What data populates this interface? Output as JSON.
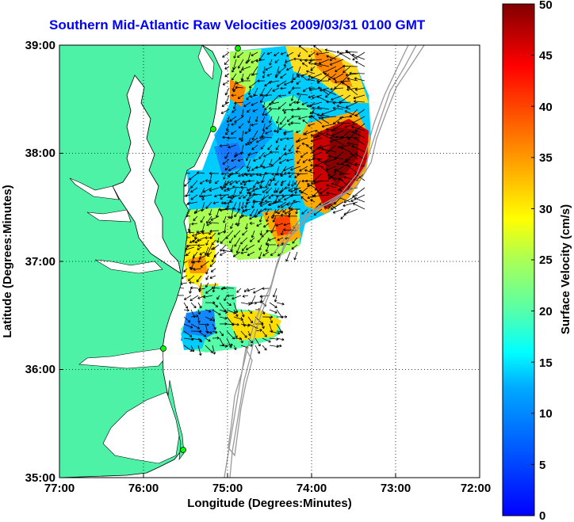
{
  "title": "Southern Mid-Atlantic Raw Velocities 2009/03/31 0100 GMT",
  "map": {
    "xlabel": "Longitude (Degrees:Minutes)",
    "ylabel": "Latitude (Degrees:Minutes)",
    "x_ticks": [
      "77:00",
      "76:00",
      "75:00",
      "74:00",
      "73:00",
      "72:00"
    ],
    "y_ticks": [
      "39:00",
      "38:00",
      "37:00",
      "36:00",
      "35:00"
    ],
    "lon_range": [
      -77,
      -72
    ],
    "lat_range": [
      35,
      39
    ],
    "land_color": "#4df2a6",
    "coast_color": "#000000",
    "bathymetry_color": "#999999",
    "grid": "dotted",
    "stations": [
      {
        "lon": -74.87,
        "lat": 38.97
      },
      {
        "lon": -75.1,
        "lat": 38.22
      },
      {
        "lon": -75.72,
        "lat": 36.18
      },
      {
        "lon": -75.53,
        "lat": 35.24
      }
    ]
  },
  "colorbar": {
    "label": "Surface Velocity (cm/s)",
    "ticks": [
      "0",
      "5",
      "10",
      "15",
      "20",
      "25",
      "30",
      "35",
      "40",
      "45",
      "50"
    ],
    "min": 0,
    "max": 50,
    "colormap": "jet"
  }
}
